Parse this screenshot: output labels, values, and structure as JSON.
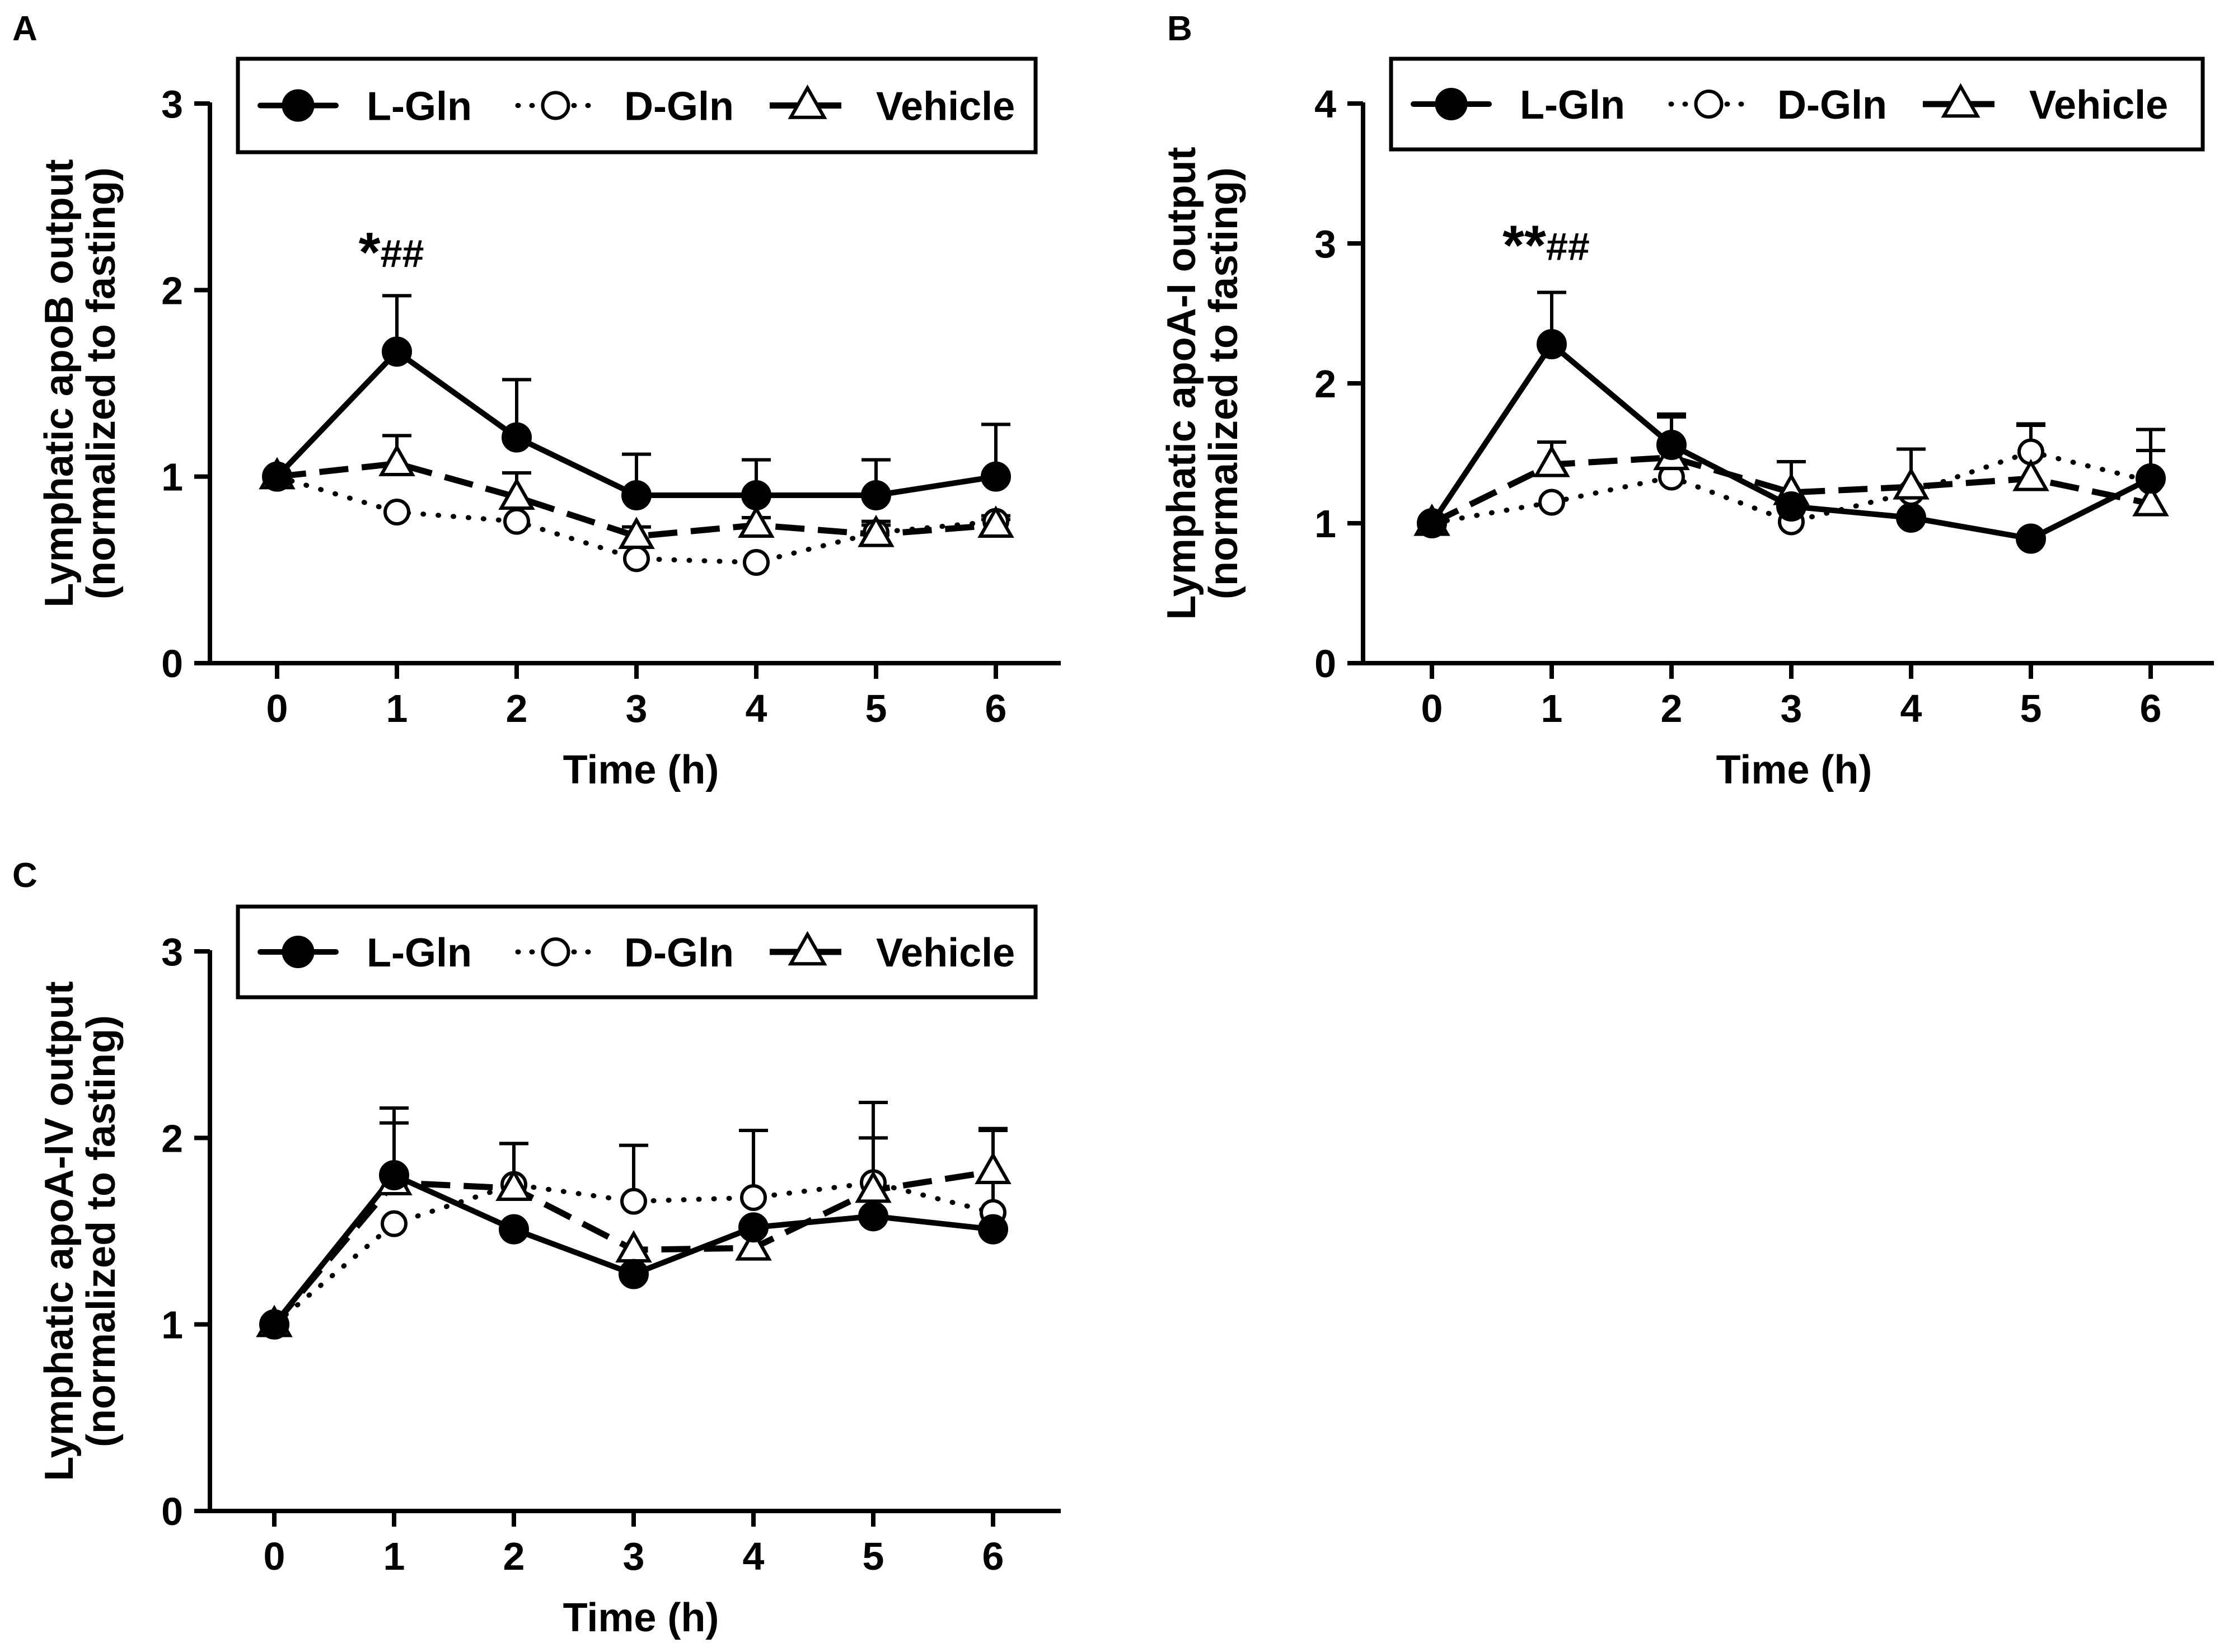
{
  "chart_data": [
    {
      "panel": "A",
      "type": "line",
      "xlabel": "Time (h)",
      "ylabel_line1": "Lymphatic apoB output",
      "ylabel_line2": "(normalized to fasting)",
      "ylim": [
        0,
        3
      ],
      "yticks": [
        "0",
        "1",
        "2",
        "3"
      ],
      "xticks": [
        "0",
        "1",
        "2",
        "3",
        "4",
        "5",
        "6"
      ],
      "x": [
        0,
        1,
        2,
        3,
        4,
        5,
        6
      ],
      "legend": [
        "L-Gln",
        "D-Gln",
        "Vehicle"
      ],
      "annotations": [
        {
          "x": 1,
          "y": 2.1,
          "stars": "*",
          "hashes": "##"
        }
      ],
      "series": [
        {
          "name": "L-Gln",
          "marker": "filled-circle",
          "line": "solid",
          "values": [
            1.0,
            1.67,
            1.21,
            0.9,
            0.9,
            0.9,
            1.0
          ],
          "err": [
            0,
            0.3,
            0.31,
            0.22,
            0.19,
            0.19,
            0.28
          ]
        },
        {
          "name": "D-Gln",
          "marker": "open-circle",
          "line": "dotted",
          "values": [
            1.0,
            0.81,
            0.76,
            0.56,
            0.54,
            0.7,
            0.76
          ],
          "err": [
            0,
            0,
            0,
            0,
            0,
            0.04,
            0.03
          ]
        },
        {
          "name": "Vehicle",
          "marker": "open-triangle",
          "line": "dashed",
          "values": [
            1.0,
            1.07,
            0.89,
            0.68,
            0.74,
            0.69,
            0.74
          ],
          "err": [
            0,
            0.15,
            0.13,
            0.05,
            0.04,
            0.07,
            0.03
          ]
        }
      ]
    },
    {
      "panel": "B",
      "type": "line",
      "xlabel": "Time (h)",
      "ylabel_line1": "Lymphatic apoA-I output",
      "ylabel_line2": "(normalized to fasting)",
      "ylim": [
        0,
        4
      ],
      "yticks": [
        "0",
        "1",
        "2",
        "3",
        "4"
      ],
      "xticks": [
        "0",
        "1",
        "2",
        "3",
        "4",
        "5",
        "6"
      ],
      "x": [
        0,
        1,
        2,
        3,
        4,
        5,
        6
      ],
      "legend": [
        "L-Gln",
        "D-Gln",
        "Vehicle"
      ],
      "annotations": [
        {
          "x": 1,
          "y": 2.85,
          "stars": "**",
          "hashes": "##"
        }
      ],
      "series": [
        {
          "name": "L-Gln",
          "marker": "filled-circle",
          "line": "solid",
          "values": [
            1.0,
            2.28,
            1.56,
            1.12,
            1.04,
            0.89,
            1.32
          ],
          "err": [
            0,
            0.37,
            0.22,
            0,
            0,
            0,
            0.35
          ]
        },
        {
          "name": "D-Gln",
          "marker": "open-circle",
          "line": "dotted",
          "values": [
            1.0,
            1.15,
            1.33,
            1.01,
            1.22,
            1.51,
            1.3
          ],
          "err": [
            0,
            0,
            0,
            0,
            0,
            0.2,
            0
          ]
        },
        {
          "name": "Vehicle",
          "marker": "open-triangle",
          "line": "dashed",
          "values": [
            1.0,
            1.42,
            1.47,
            1.22,
            1.26,
            1.32,
            1.14
          ],
          "err": [
            0,
            0.16,
            0.29,
            0.22,
            0.27,
            0.38,
            0.38
          ]
        }
      ]
    },
    {
      "panel": "C",
      "type": "line",
      "xlabel": "Time (h)",
      "ylabel_line1": "Lymphatic apoA-IV output",
      "ylabel_line2": "(normalized to fasting)",
      "ylim": [
        0,
        3
      ],
      "yticks": [
        "0",
        "1",
        "2",
        "3"
      ],
      "xticks": [
        "0",
        "1",
        "2",
        "3",
        "4",
        "5",
        "6"
      ],
      "x": [
        0,
        1,
        2,
        3,
        4,
        5,
        6
      ],
      "legend": [
        "L-Gln",
        "D-Gln",
        "Vehicle"
      ],
      "annotations": [],
      "series": [
        {
          "name": "L-Gln",
          "marker": "filled-circle",
          "line": "solid",
          "values": [
            1.0,
            1.8,
            1.51,
            1.27,
            1.52,
            1.58,
            1.51
          ],
          "err": [
            0,
            0.28,
            0,
            0,
            0,
            0,
            0
          ]
        },
        {
          "name": "D-Gln",
          "marker": "open-circle",
          "line": "dotted",
          "values": [
            1.0,
            1.54,
            1.75,
            1.66,
            1.68,
            1.76,
            1.6
          ],
          "err": [
            0,
            0,
            0.22,
            0.3,
            0.36,
            0.43,
            0.45
          ]
        },
        {
          "name": "Vehicle",
          "marker": "open-triangle",
          "line": "dashed",
          "values": [
            1.0,
            1.76,
            1.73,
            1.4,
            1.41,
            1.72,
            1.82
          ],
          "err": [
            0,
            0.4,
            0.24,
            0,
            0,
            0.28,
            0.22
          ]
        }
      ]
    }
  ]
}
